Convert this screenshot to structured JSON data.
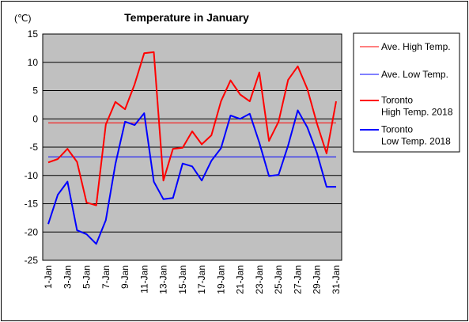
{
  "chart_data": {
    "type": "line",
    "title": "Temperature in January",
    "ylabel": "(℃)",
    "xlabel": "",
    "ylim": [
      -25,
      15
    ],
    "yticks": [
      15,
      10,
      5,
      0,
      -5,
      -10,
      -15,
      -20,
      -25
    ],
    "grid": true,
    "legend_position": "right",
    "categories": [
      "1-Jan",
      "2-Jan",
      "3-Jan",
      "4-Jan",
      "5-Jan",
      "6-Jan",
      "7-Jan",
      "8-Jan",
      "9-Jan",
      "10-Jan",
      "11-Jan",
      "12-Jan",
      "13-Jan",
      "14-Jan",
      "15-Jan",
      "16-Jan",
      "17-Jan",
      "18-Jan",
      "19-Jan",
      "20-Jan",
      "21-Jan",
      "22-Jan",
      "23-Jan",
      "24-Jan",
      "25-Jan",
      "26-Jan",
      "27-Jan",
      "28-Jan",
      "29-Jan",
      "30-Jan",
      "31-Jan"
    ],
    "x_tick_labels": [
      "1-Jan",
      "3-Jan",
      "5-Jan",
      "7-Jan",
      "9-Jan",
      "11-Jan",
      "13-Jan",
      "15-Jan",
      "17-Jan",
      "19-Jan",
      "21-Jan",
      "23-Jan",
      "25-Jan",
      "27-Jan",
      "29-Jan",
      "31-Jan"
    ],
    "series": [
      {
        "name": "Ave. High Temp.",
        "color": "#ff0000",
        "style": "thin",
        "values": [
          -0.7,
          -0.7,
          -0.7,
          -0.7,
          -0.7,
          -0.7,
          -0.7,
          -0.7,
          -0.7,
          -0.7,
          -0.7,
          -0.7,
          -0.7,
          -0.7,
          -0.7,
          -0.7,
          -0.7,
          -0.7,
          -0.7,
          -0.7,
          -0.7,
          -0.7,
          -0.7,
          -0.7,
          -0.7,
          -0.7,
          -0.7,
          -0.7,
          -0.7,
          -0.7,
          -0.7
        ]
      },
      {
        "name": "Ave. Low Temp.",
        "color": "#0000ff",
        "style": "thin",
        "values": [
          -6.7,
          -6.7,
          -6.7,
          -6.7,
          -6.7,
          -6.7,
          -6.7,
          -6.7,
          -6.7,
          -6.7,
          -6.7,
          -6.7,
          -6.7,
          -6.7,
          -6.7,
          -6.7,
          -6.7,
          -6.7,
          -6.7,
          -6.7,
          -6.7,
          -6.7,
          -6.7,
          -6.7,
          -6.7,
          -6.7,
          -6.7,
          -6.7,
          -6.7,
          -6.7,
          -6.7
        ]
      },
      {
        "name": "Toronto High Temp. 2018",
        "legend_lines": [
          "Toronto",
          "High Temp. 2018"
        ],
        "color": "#ff0000",
        "style": "thick",
        "values": [
          -7.7,
          -7.1,
          -5.3,
          -7.6,
          -14.8,
          -15.3,
          -1.0,
          3.0,
          1.7,
          6.1,
          11.6,
          11.8,
          -10.9,
          -5.3,
          -5.1,
          -2.2,
          -4.5,
          -2.9,
          3.1,
          6.8,
          4.3,
          3.1,
          8.2,
          -3.9,
          -0.5,
          6.9,
          9.3,
          5.3,
          -0.8,
          -6.1,
          3.1
        ]
      },
      {
        "name": "Toronto Low Temp. 2018",
        "legend_lines": [
          "Toronto",
          "Low Temp. 2018"
        ],
        "color": "#0000ff",
        "style": "thick",
        "values": [
          -18.6,
          -13.4,
          -11.1,
          -19.7,
          -20.4,
          -22.1,
          -17.9,
          -8.0,
          -0.5,
          -1.1,
          1.0,
          -11.1,
          -14.2,
          -14.0,
          -7.9,
          -8.4,
          -10.9,
          -7.4,
          -5.2,
          0.6,
          0.0,
          0.9,
          -4.2,
          -10.1,
          -9.9,
          -4.7,
          1.5,
          -1.5,
          -6.0,
          -12.0,
          -12.0
        ]
      }
    ]
  }
}
